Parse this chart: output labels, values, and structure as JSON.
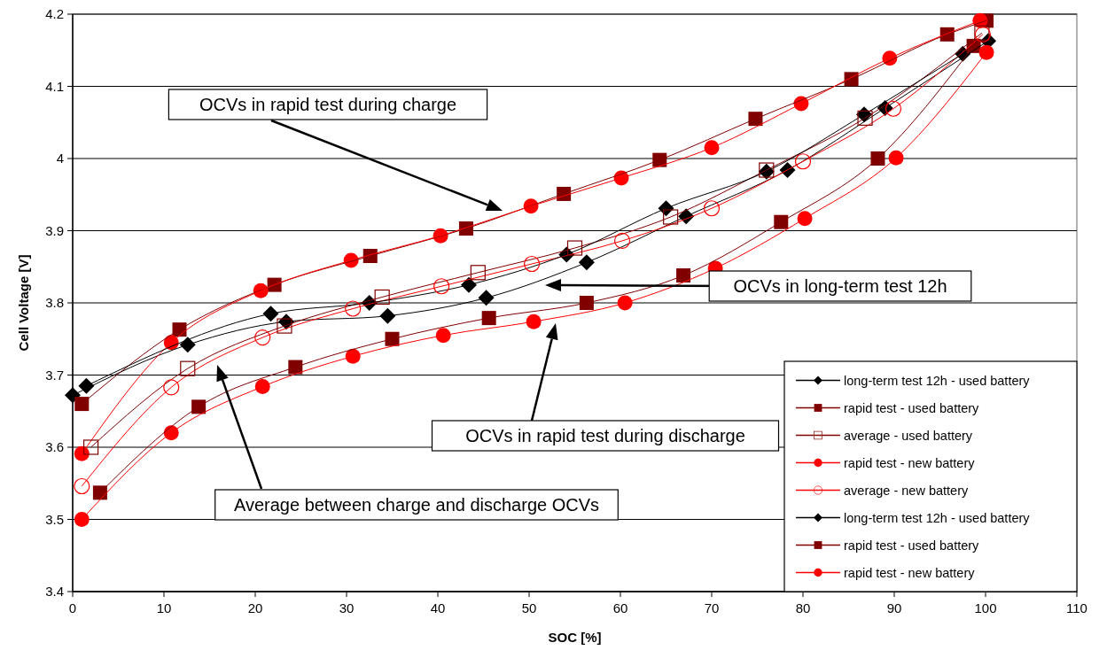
{
  "chart_data": {
    "type": "line",
    "xlabel": "SOC [%]",
    "ylabel": "Cell Voltage [V]",
    "xlim": [
      0,
      110
    ],
    "ylim": [
      3.4,
      4.2
    ],
    "xticks": [
      0,
      10,
      20,
      30,
      40,
      50,
      60,
      70,
      80,
      90,
      100,
      110
    ],
    "yticks": [
      3.4,
      3.5,
      3.6,
      3.7,
      3.8,
      3.9,
      4,
      4.1,
      4.2
    ],
    "grid": "y",
    "legend": "bottom right",
    "series": [
      {
        "name": "long-term test 12h - used battery",
        "color": "#000000",
        "marker": "diamond",
        "x": [
          0,
          12.6,
          23.4,
          34.5,
          45.3,
          56.3,
          67.2,
          78.3,
          89,
          100.3
        ],
        "values": [
          3.672,
          3.742,
          3.774,
          3.782,
          3.807,
          3.856,
          3.92,
          3.984,
          4.07,
          4.163
        ]
      },
      {
        "name": "rapid test - used battery",
        "color": "#800000",
        "marker": "square",
        "x": [
          1,
          11.7,
          22.1,
          32.6,
          43.1,
          53.8,
          64.3,
          74.8,
          85.3,
          95.8,
          100.1
        ],
        "values": [
          3.66,
          3.763,
          3.825,
          3.865,
          3.903,
          3.951,
          3.998,
          4.055,
          4.11,
          4.172,
          4.191
        ]
      },
      {
        "name": "average - used battery",
        "color": "#800000",
        "marker": "square-open",
        "x": [
          2,
          12.6,
          23.2,
          33.9,
          44.4,
          55,
          65.5,
          76,
          86.8,
          99.6
        ],
        "values": [
          3.6,
          3.709,
          3.768,
          3.808,
          3.842,
          3.876,
          3.919,
          3.984,
          4.056,
          4.174
        ]
      },
      {
        "name": "rapid test - new battery",
        "color": "#ff0000",
        "marker": "circle",
        "x": [
          1,
          10.8,
          20.6,
          30.5,
          40.3,
          50.2,
          60.1,
          70,
          79.8,
          89.5,
          99.4
        ],
        "values": [
          3.591,
          3.745,
          3.817,
          3.859,
          3.893,
          3.934,
          3.973,
          4.015,
          4.076,
          4.139,
          4.191
        ]
      },
      {
        "name": "average - new battery",
        "color": "#ff0000",
        "marker": "circle-open",
        "x": [
          1,
          10.8,
          20.8,
          30.7,
          40.4,
          50.3,
          60.2,
          70,
          80,
          89.9,
          99.7
        ],
        "values": [
          3.546,
          3.683,
          3.752,
          3.792,
          3.823,
          3.854,
          3.886,
          3.931,
          3.996,
          4.069,
          4.172
        ]
      },
      {
        "name": "long-term test 12h - used battery",
        "color": "#000000",
        "marker": "diamond",
        "x": [
          1.5,
          21.7,
          32.5,
          43.4,
          54.1,
          65,
          76,
          86.7,
          97.5
        ],
        "values": [
          3.685,
          3.785,
          3.8,
          3.825,
          3.867,
          3.931,
          3.982,
          4.061,
          4.145
        ]
      },
      {
        "name": "rapid test - used battery",
        "color": "#800000",
        "marker": "square",
        "x": [
          3,
          13.8,
          24.4,
          35,
          45.6,
          56.3,
          66.9,
          77.6,
          88.2,
          98.7
        ],
        "values": [
          3.537,
          3.656,
          3.711,
          3.75,
          3.779,
          3.8,
          3.838,
          3.912,
          4,
          4.156
        ]
      },
      {
        "name": "rapid test - new battery",
        "color": "#ff0000",
        "marker": "circle",
        "x": [
          1,
          10.8,
          20.8,
          30.7,
          40.6,
          50.5,
          60.5,
          70.4,
          80.2,
          90.2,
          100.1
        ],
        "values": [
          3.5,
          3.62,
          3.684,
          3.726,
          3.755,
          3.774,
          3.8,
          3.848,
          3.917,
          4.001,
          4.147
        ]
      }
    ],
    "annotations": [
      "OCVs in rapid test during charge",
      "OCVs in long-term test 12h",
      "OCVs in rapid test during discharge",
      "Average between charge and discharge OCVs"
    ]
  }
}
